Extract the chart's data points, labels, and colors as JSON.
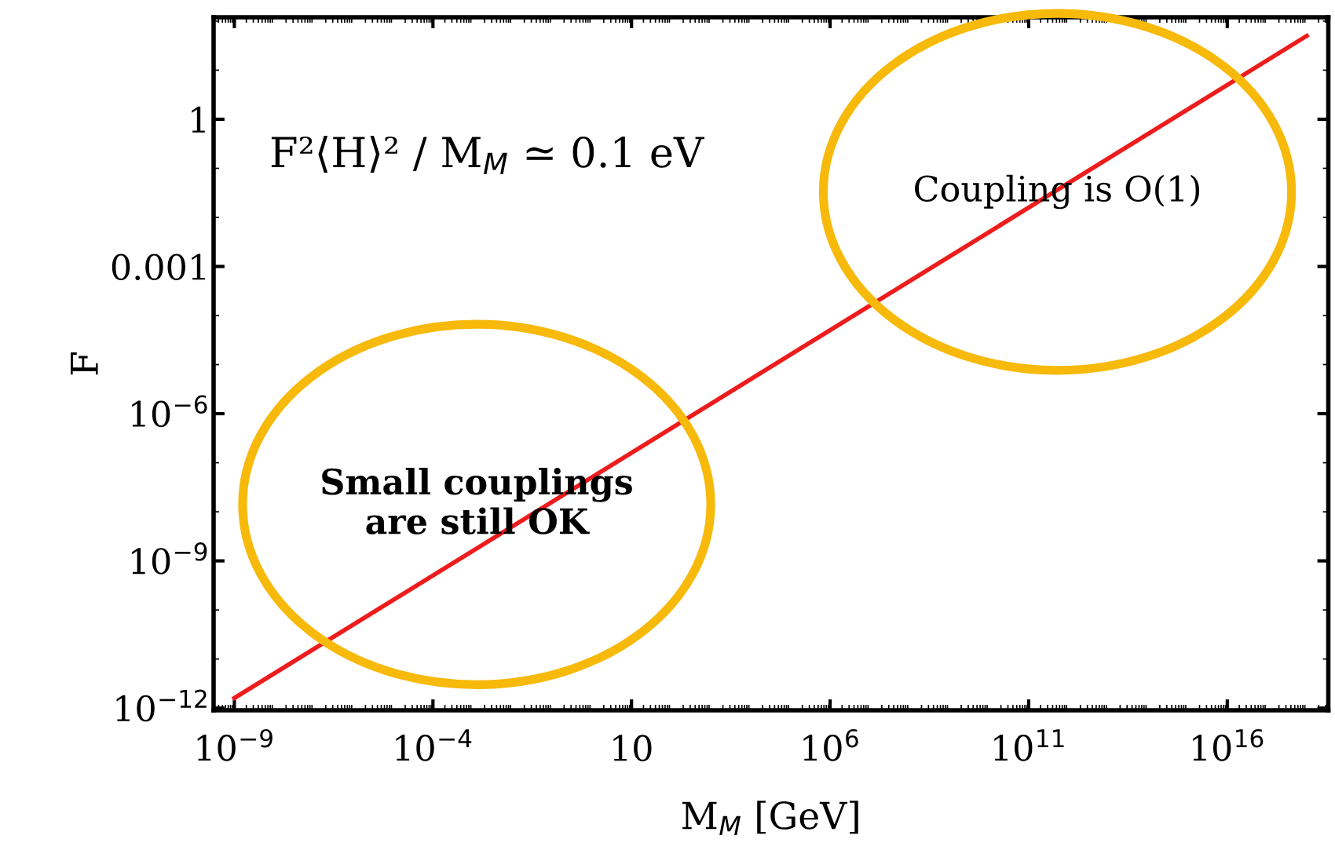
{
  "chart_data": {
    "type": "line",
    "xlabel": "M$_{M}$ [GeV]",
    "ylabel": "F",
    "log": "xy",
    "x": [
      1e-09,
      1e+18
    ],
    "series": [
      {
        "color": "#ee1c1c",
        "values": [
          1.6e-12,
          50
        ]
      }
    ],
    "xlim": [
      3e-10,
      3.5e+18
    ],
    "ylim": [
      9e-13,
      120
    ],
    "xticks": [
      {
        "value": 1e-09,
        "label": "10$^{−9}$"
      },
      {
        "value": 0.0001,
        "label": "10$^{−4}$"
      },
      10,
      {
        "value": 1000000.0,
        "label": "10$^{6}$"
      },
      {
        "value": 100000000000.0,
        "label": "10$^{11}$"
      },
      {
        "value": 1e+16,
        "label": "10$^{16}$"
      }
    ],
    "yticks": [
      1,
      0.001,
      {
        "value": 1e-06,
        "label": "10$^{−6}$"
      },
      {
        "value": 1e-09,
        "label": "10$^{−9}$"
      },
      {
        "value": 1e-12,
        "label": "10$^{−12}$"
      }
    ],
    "grid": false,
    "legend": false,
    "marker": "none",
    "line_style": "solid",
    "annotations": [
      "F²⟨H⟩² / M$_{M}$ ≃ 0.1 eV",
      "Coupling is O(1)",
      "Small couplings\nare still OK"
    ]
  }
}
